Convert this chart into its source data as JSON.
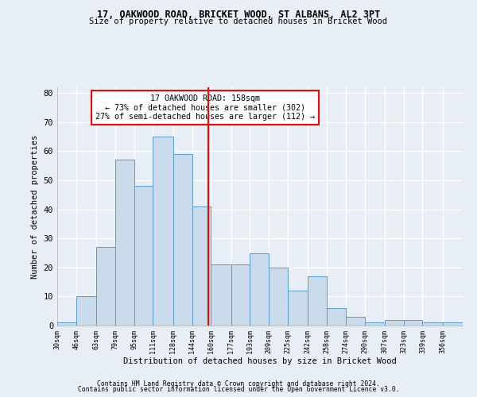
{
  "title1": "17, OAKWOOD ROAD, BRICKET WOOD, ST ALBANS, AL2 3PT",
  "title2": "Size of property relative to detached houses in Bricket Wood",
  "xlabel": "Distribution of detached houses by size in Bricket Wood",
  "ylabel": "Number of detached properties",
  "bins": [
    30,
    46,
    63,
    79,
    95,
    111,
    128,
    144,
    160,
    177,
    193,
    209,
    225,
    242,
    258,
    274,
    290,
    307,
    323,
    339,
    356
  ],
  "counts": [
    1,
    10,
    27,
    57,
    48,
    65,
    59,
    41,
    21,
    21,
    25,
    20,
    12,
    17,
    6,
    3,
    1,
    2,
    2,
    1,
    1
  ],
  "bar_color": "#c9daea",
  "bar_edge_color": "#5b9bd5",
  "property_line_x": 158,
  "property_line_color": "red",
  "annotation_line1": "17 OAKWOOD ROAD: 158sqm",
  "annotation_line2": "← 73% of detached houses are smaller (302)",
  "annotation_line3": "27% of semi-detached houses are larger (112) →",
  "annotation_box_color": "white",
  "annotation_box_edge": "red",
  "ylim": [
    0,
    82
  ],
  "yticks": [
    0,
    10,
    20,
    30,
    40,
    50,
    60,
    70,
    80
  ],
  "footer1": "Contains HM Land Registry data © Crown copyright and database right 2024.",
  "footer2": "Contains public sector information licensed under the Open Government Licence v3.0.",
  "bg_color": "#e8eef5",
  "grid_color": "white"
}
